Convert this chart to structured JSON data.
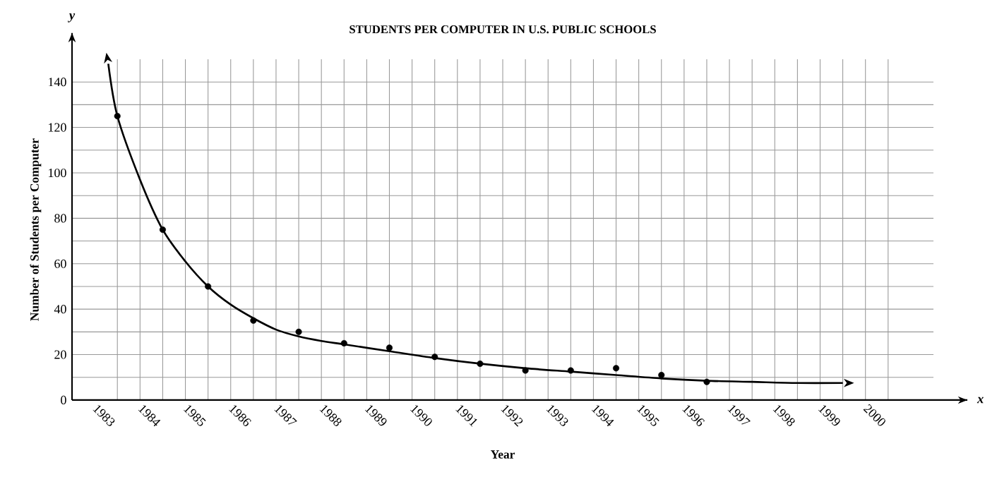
{
  "chart_data": {
    "type": "scatter",
    "title": "STUDENTS PER COMPUTER IN U.S. PUBLIC SCHOOLS",
    "xlabel": "Year",
    "ylabel": "Number of Students per Computer",
    "annotations": [
      "y",
      "x"
    ],
    "xlim": [
      1982,
      2001
    ],
    "ylim": [
      0,
      150
    ],
    "xticks": [
      1983,
      1984,
      1985,
      1986,
      1987,
      1988,
      1989,
      1990,
      1991,
      1992,
      1993,
      1994,
      1995,
      1996,
      1997,
      1998,
      1999,
      2000
    ],
    "yticks": [
      0,
      20,
      40,
      60,
      80,
      100,
      120,
      140
    ],
    "grid": true,
    "series": [
      {
        "marker": "circle",
        "color": "#000000",
        "x": [
          1983,
          1984,
          1985,
          1986,
          1987,
          1988,
          1989,
          1990,
          1991,
          1992,
          1993,
          1994,
          1995,
          1996
        ],
        "values": [
          125,
          75,
          50,
          35,
          30,
          25,
          23,
          19,
          16,
          13,
          13,
          14,
          11,
          8
        ]
      },
      {
        "type": "line",
        "marker": "none",
        "line_style": "solid",
        "color": "#000000",
        "x": [
          1982.8,
          1983,
          1983.5,
          1984,
          1984.5,
          1985,
          1985.5,
          1986,
          1986.5,
          1987,
          1987.5,
          1988,
          1989,
          1990,
          1991,
          1992,
          1993,
          1994,
          1995,
          1996,
          1997,
          1998,
          1999
        ],
        "values": [
          148,
          125,
          97,
          75,
          61,
          50,
          42,
          36,
          31,
          28,
          26,
          24.5,
          21.5,
          18.5,
          16,
          14,
          12.5,
          11,
          9.5,
          8.5,
          8,
          7.5,
          7.5
        ]
      }
    ]
  }
}
